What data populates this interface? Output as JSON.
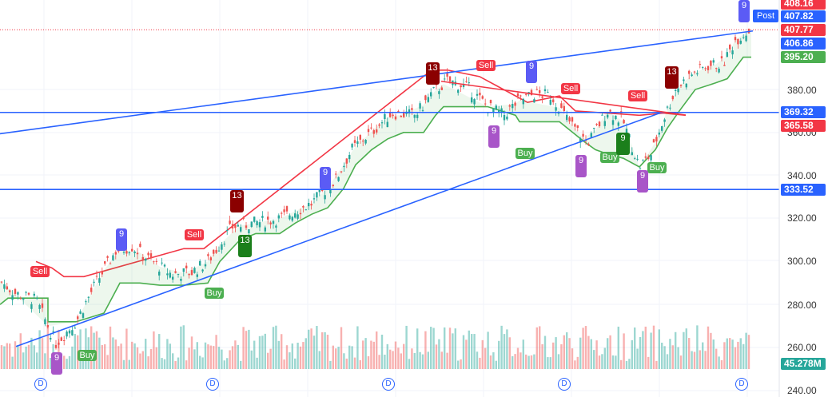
{
  "chart_data": {
    "type": "candlestick",
    "y_axis": {
      "ticks": [
        "380.00",
        "360.00",
        "340.00",
        "320.00",
        "300.00",
        "280.00",
        "260.00",
        "240.00"
      ],
      "range": [
        238,
        410
      ]
    },
    "price_labels": [
      {
        "text": "408.16",
        "color": "#f23645"
      },
      {
        "text": "407.82",
        "color": "#2962ff"
      },
      {
        "text": "407.77",
        "color": "#f23645"
      },
      {
        "text": "406.86",
        "color": "#2962ff"
      },
      {
        "text": "395.20",
        "color": "#4caf50"
      },
      {
        "text": "369.32",
        "color": "#2962ff"
      },
      {
        "text": "365.58",
        "color": "#f23645"
      },
      {
        "text": "333.52",
        "color": "#2962ff"
      },
      {
        "text": "45.278M",
        "color": "#26a69a"
      }
    ],
    "post_label": "Post",
    "horizontal_lines": [
      369.32,
      333.52
    ],
    "signals": [
      {
        "label": "Sell",
        "kind": "sell"
      },
      {
        "label": "Buy",
        "kind": "buy"
      },
      {
        "label": "Sell",
        "kind": "sell"
      },
      {
        "label": "Buy",
        "kind": "buy"
      },
      {
        "label": "Sell",
        "kind": "sell"
      },
      {
        "label": "Buy",
        "kind": "buy"
      },
      {
        "label": "Sell",
        "kind": "sell"
      },
      {
        "label": "Buy",
        "kind": "buy"
      },
      {
        "label": "Sell",
        "kind": "sell"
      },
      {
        "label": "Buy",
        "kind": "buy"
      }
    ],
    "counters": [
      {
        "label": "9",
        "kind": "9-down"
      },
      {
        "label": "9",
        "kind": "9-down"
      },
      {
        "label": "9",
        "kind": "9-down"
      },
      {
        "label": "9",
        "kind": "9-down"
      },
      {
        "label": "13",
        "kind": "13-down"
      },
      {
        "label": "13",
        "kind": "13-down"
      },
      {
        "label": "13",
        "kind": "13-up"
      },
      {
        "label": "13",
        "kind": "13-up"
      },
      {
        "label": "9",
        "kind": "9-up"
      },
      {
        "label": "9",
        "kind": "9-up"
      },
      {
        "label": "9",
        "kind": "9-up"
      },
      {
        "label": "9",
        "kind": "9-up"
      },
      {
        "label": "9",
        "kind": "9-down"
      }
    ],
    "dividend_marker": "D",
    "colors": {
      "up": "#26a69a",
      "down": "#ef5350",
      "support": "#4caf50",
      "resistance": "#f23645",
      "trend": "#2962ff"
    }
  }
}
